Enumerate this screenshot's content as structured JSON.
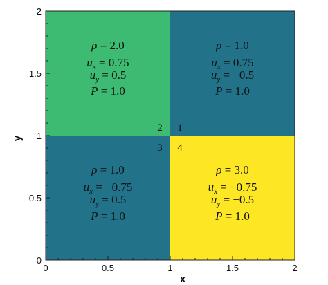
{
  "axes": {
    "x_label": "x",
    "y_label": "y",
    "x_ticks": [
      "0",
      "0.5",
      "1",
      "1.5",
      "2"
    ],
    "y_ticks": [
      "0",
      "0.5",
      "1",
      "1.5",
      "2"
    ],
    "x_range": [
      0,
      2
    ],
    "y_range": [
      0,
      2
    ]
  },
  "regions": [
    {
      "id": "2",
      "x": [
        0,
        1
      ],
      "y": [
        1,
        2
      ],
      "color": "#3dbb72",
      "rho": "2.0",
      "ux": "0.75",
      "uy": "0.5",
      "P": "1.0"
    },
    {
      "id": "1",
      "x": [
        1,
        2
      ],
      "y": [
        1,
        2
      ],
      "color": "#22738a",
      "rho": "1.0",
      "ux": "0.75",
      "uy": "−0.5",
      "P": "1.0"
    },
    {
      "id": "3",
      "x": [
        0,
        1
      ],
      "y": [
        0,
        1
      ],
      "color": "#22738a",
      "rho": "1.0",
      "ux": "−0.75",
      "uy": "0.5",
      "P": "1.0"
    },
    {
      "id": "4",
      "x": [
        1,
        2
      ],
      "y": [
        0,
        1
      ],
      "color": "#fde725",
      "rho": "3.0",
      "ux": "−0.75",
      "uy": "−0.5",
      "P": "1.0"
    }
  ]
}
